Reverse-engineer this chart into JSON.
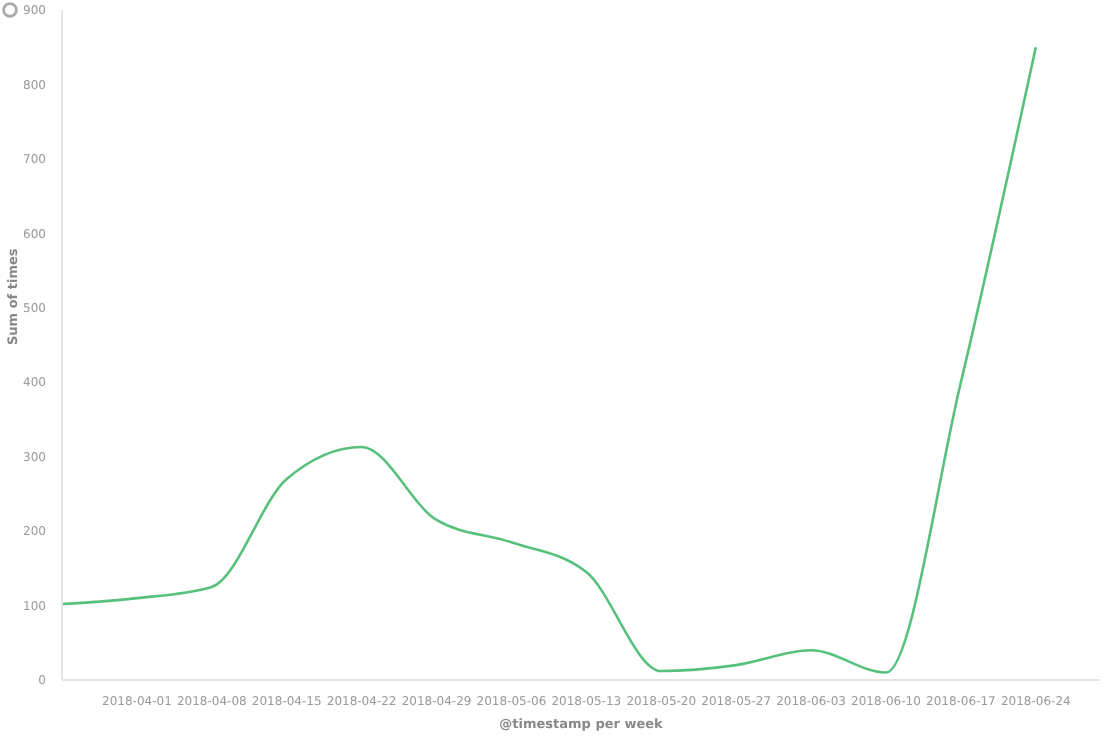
{
  "chart_data": {
    "type": "line",
    "xlabel": "@timestamp per week",
    "ylabel": "Sum of times",
    "x": [
      "2018-03-25",
      "2018-04-01",
      "2018-04-08",
      "2018-04-15",
      "2018-04-22",
      "2018-04-29",
      "2018-05-06",
      "2018-05-13",
      "2018-05-20",
      "2018-05-27",
      "2018-06-03",
      "2018-06-10",
      "2018-06-17",
      "2018-06-24"
    ],
    "series": [
      {
        "color": "#57c17b",
        "values": [
          102,
          110,
          125,
          270,
          313,
          215,
          185,
          145,
          12,
          20,
          40,
          10,
          400,
          850
        ]
      }
    ],
    "xlim": [
      "2018-03-25",
      "2018-06-30"
    ],
    "xticks": [
      "2018-04-01",
      "2018-04-08",
      "2018-04-15",
      "2018-04-22",
      "2018-04-29",
      "2018-05-06",
      "2018-05-13",
      "2018-05-20",
      "2018-05-27",
      "2018-06-03",
      "2018-06-10",
      "2018-06-17",
      "2018-06-24"
    ],
    "ylim": [
      0,
      900
    ],
    "yticks": [
      0,
      100,
      200,
      300,
      400,
      500,
      600,
      700,
      800,
      900
    ],
    "grid": false,
    "legend": false,
    "marker": "none",
    "line_style": "solid"
  }
}
